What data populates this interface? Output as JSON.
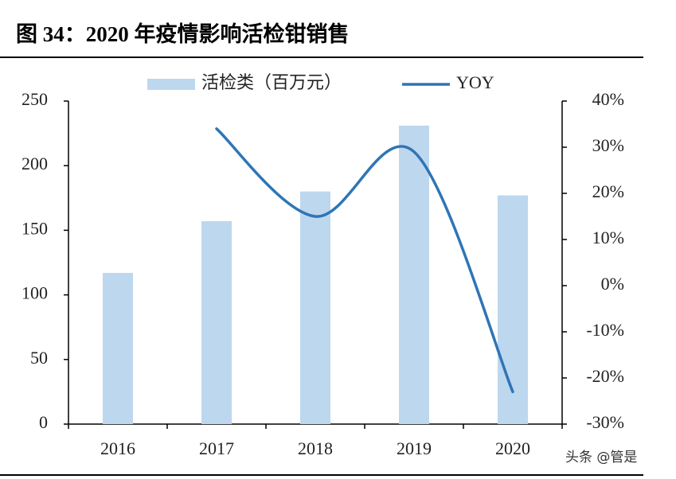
{
  "chart_data": {
    "type": "bar",
    "title": "图 34：2020 年疫情影响活检钳销售",
    "categories": [
      "2016",
      "2017",
      "2018",
      "2019",
      "2020"
    ],
    "series": [
      {
        "name": "活检类（百万元）",
        "color": "#bdd7ee",
        "values": [
          117,
          157,
          180,
          231,
          177
        ]
      },
      {
        "name": "YOY",
        "color": "#2e75b6",
        "type": "line",
        "axis": "y2",
        "values": [
          null,
          34,
          15,
          29,
          -23
        ]
      }
    ],
    "ylim": [
      0,
      250
    ],
    "yticks": [
      0,
      50,
      100,
      150,
      200,
      250
    ],
    "y2lim": [
      -30,
      40
    ],
    "y2ticks": [
      {
        "value": -30,
        "label": "-30%"
      },
      {
        "value": -20,
        "label": "-20%"
      },
      {
        "value": -10,
        "label": "-10%"
      },
      {
        "value": 0,
        "label": "0%"
      },
      {
        "value": 10,
        "label": "10%"
      },
      {
        "value": 20,
        "label": "20%"
      },
      {
        "value": 30,
        "label": "30%"
      },
      {
        "value": 40,
        "label": "40%"
      }
    ],
    "watermark": "头条 @管是"
  }
}
